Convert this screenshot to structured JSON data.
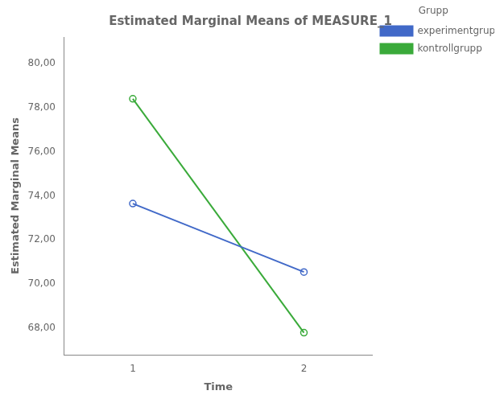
{
  "chart_data": {
    "type": "line",
    "title": "Estimated Marginal Means of MEASURE_1",
    "xlabel": "Time",
    "ylabel": "Estimated Marginal Means",
    "x": [
      1,
      2
    ],
    "series": [
      {
        "name": "experimentgrupp",
        "color": "#4169c8",
        "marker": "circle",
        "values": [
          73.65,
          70.55
        ]
      },
      {
        "name": "kontrollgrupp",
        "color": "#3aaa3a",
        "marker": "circle",
        "values": [
          78.4,
          67.8
        ]
      }
    ],
    "xlim": [
      0.6,
      2.4
    ],
    "xticks": [
      1,
      2
    ],
    "ylim": [
      66.8,
      81.2
    ],
    "yticks": [
      {
        "value": 68.0,
        "label": "68,00"
      },
      {
        "value": 70.0,
        "label": "70,00"
      },
      {
        "value": 72.0,
        "label": "72,00"
      },
      {
        "value": 74.0,
        "label": "74,00"
      },
      {
        "value": 76.0,
        "label": "76,00"
      },
      {
        "value": 78.0,
        "label": "78,00"
      },
      {
        "value": 80.0,
        "label": "80,00"
      }
    ],
    "grid": false,
    "legend": "right",
    "legend_title": "Grupp"
  }
}
